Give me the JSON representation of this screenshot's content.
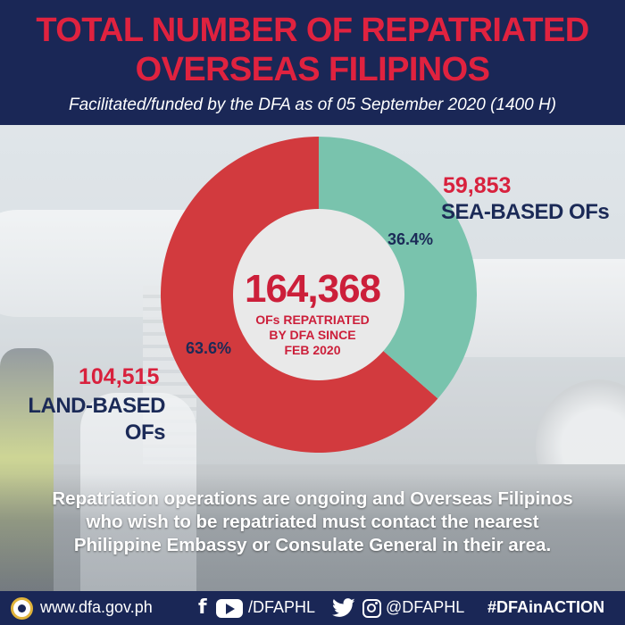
{
  "header": {
    "title_line1": "TOTAL NUMBER OF REPATRIATED",
    "title_line2": "OVERSEAS FILIPINOS",
    "subtitle": "Facilitated/funded by the DFA as of  05 September 2020 (1400 H)"
  },
  "chart_data": {
    "type": "pie",
    "style": "donut",
    "total": 164368,
    "total_label": "164,368",
    "center_text": [
      "OFs REPATRIATED",
      "BY DFA  SINCE",
      "FEB 2020"
    ],
    "slices": [
      {
        "name": "LAND-BASED OFs",
        "value": 104515,
        "value_label": "104,515",
        "percent": 63.6,
        "percent_label": "63.6%",
        "color": "#d23a3e"
      },
      {
        "name": "SEA-BASED OFs",
        "value": 59853,
        "value_label": "59,853",
        "percent": 36.4,
        "percent_label": "36.4%",
        "color": "#79c3ad"
      }
    ],
    "land_label_lines": [
      "LAND-BASED",
      "OFs"
    ]
  },
  "note": {
    "line1": "Repatriation operations are ongoing and Overseas Filipinos",
    "line2": "who wish to be repatriated must contact the nearest",
    "line3": "Philippine Embassy or Consulate General in their area."
  },
  "footer": {
    "website": "www.dfa.gov.ph",
    "handle_fb_yt": "/DFAPHL",
    "handle_tw_ig": "@DFAPHL",
    "hashtag": "#DFAinACTION",
    "icons": [
      "dfa-seal-icon",
      "facebook-icon",
      "youtube-icon",
      "twitter-icon",
      "instagram-icon"
    ]
  },
  "colors": {
    "navy": "#1a2756",
    "red": "#e0223f",
    "land_slice": "#d23a3e",
    "sea_slice": "#79c3ad"
  }
}
